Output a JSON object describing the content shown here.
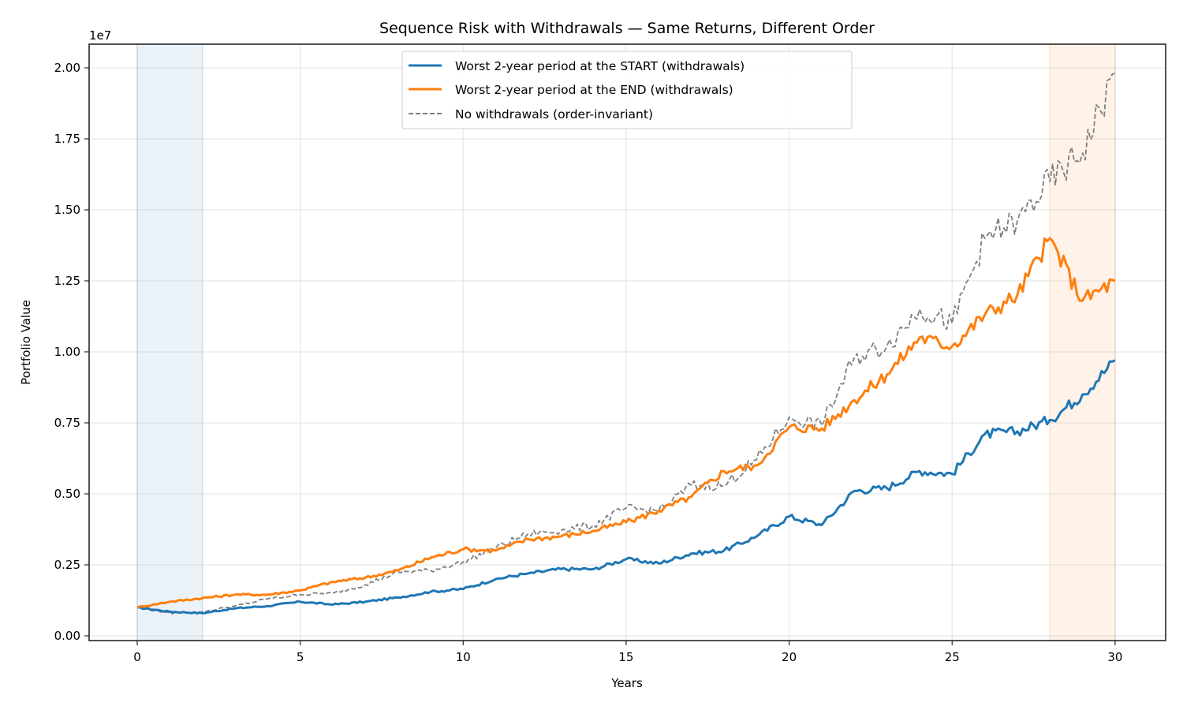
{
  "chart_data": {
    "type": "line",
    "title": "Sequence Risk with Withdrawals — Same Returns, Different Order",
    "xlabel": "Years",
    "ylabel": "Portfolio Value",
    "y_offset_label": "1e7",
    "xlim": [
      -1.5,
      31.5
    ],
    "ylim": [
      -0.05,
      2.08
    ],
    "y_scale": 10000000,
    "grid": true,
    "legend_position": "upper center",
    "x_ticks": [
      0,
      5,
      10,
      15,
      20,
      25,
      30
    ],
    "x_tick_labels": [
      "0",
      "5",
      "10",
      "15",
      "20",
      "25",
      "30"
    ],
    "y_ticks": [
      0.0,
      0.25,
      0.5,
      0.75,
      1.0,
      1.25,
      1.5,
      1.75,
      2.0
    ],
    "y_tick_labels": [
      "0.00",
      "0.25",
      "0.50",
      "0.75",
      "1.00",
      "1.25",
      "1.50",
      "1.75",
      "2.00"
    ],
    "shaded_regions": [
      {
        "name": "worst-period-start",
        "x0": 0,
        "x1": 2,
        "color": "#1f77b4",
        "opacity": 0.09
      },
      {
        "name": "worst-period-end",
        "x0": 28,
        "x1": 30,
        "color": "#ff7f0e",
        "opacity": 0.09
      }
    ],
    "x": [
      0,
      1,
      2,
      3,
      4,
      5,
      6,
      7,
      8,
      9,
      10,
      11,
      12,
      13,
      14,
      15,
      16,
      17,
      18,
      19,
      20,
      21,
      22,
      23,
      24,
      25,
      26,
      27,
      28,
      29,
      30
    ],
    "series": [
      {
        "name": "Worst 2-year period at the START (withdrawals)",
        "color": "#1f77b4",
        "style": "solid",
        "values": [
          1000000,
          850000,
          800000,
          970000,
          1050000,
          1200000,
          1100000,
          1200000,
          1350000,
          1550000,
          1650000,
          2000000,
          2200000,
          2350000,
          2350000,
          2700000,
          2550000,
          2900000,
          3000000,
          3500000,
          4200000,
          3900000,
          5100000,
          5200000,
          5800000,
          5700000,
          7100000,
          7200000,
          7600000,
          8500000,
          9700000
        ]
      },
      {
        "name": "Worst 2-year period at the END (withdrawals)",
        "color": "#ff7f0e",
        "style": "solid",
        "values": [
          1000000,
          1200000,
          1330000,
          1450000,
          1450000,
          1600000,
          1900000,
          2050000,
          2300000,
          2750000,
          3050000,
          3000000,
          3400000,
          3500000,
          3700000,
          4000000,
          4400000,
          4900000,
          5800000,
          6000000,
          7350000,
          7300000,
          8300000,
          9200000,
          10500000,
          10200000,
          11300000,
          12000000,
          14000000,
          11800000,
          12500000
        ]
      },
      {
        "name": "No withdrawals (order-invariant)",
        "color": "#7f7f7f",
        "style": "dashed",
        "values": [
          1000000,
          800000,
          850000,
          1050000,
          1300000,
          1450000,
          1500000,
          1800000,
          2250000,
          2300000,
          2600000,
          3100000,
          3600000,
          3700000,
          3900000,
          4500000,
          4400000,
          5300000,
          5300000,
          6200000,
          7700000,
          7400000,
          9800000,
          10200000,
          11500000,
          11000000,
          14000000,
          14600000,
          16000000,
          17000000,
          19800000
        ]
      }
    ]
  }
}
